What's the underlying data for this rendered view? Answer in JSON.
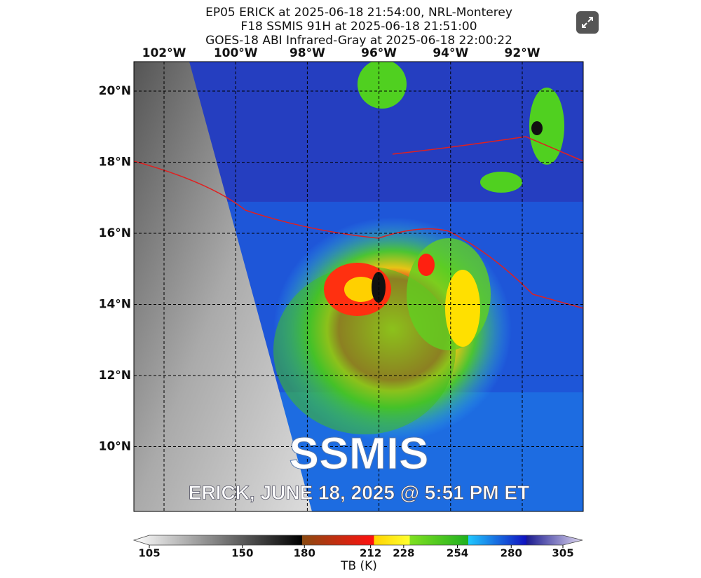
{
  "title_lines": [
    "EP05 ERICK at 2025-06-18 21:54:00, NRL-Monterey",
    "F18 SSMIS 91H at 2025-06-18 21:51:00",
    "GOES-18 ABI Infrared-Gray at 2025-06-18 22:00:22"
  ],
  "longitude_labels": [
    "102°W",
    "100°W",
    "98°W",
    "96°W",
    "94°W",
    "92°W"
  ],
  "latitude_labels": [
    "20°N",
    "18°N",
    "16°N",
    "14°N",
    "12°N",
    "10°N"
  ],
  "overlay": {
    "headline": "SSMIS",
    "caption": "ERICK, JUNE 18, 2025 @ 5:51 PM ET"
  },
  "colorbar": {
    "label": "TB (K)",
    "range": [
      105,
      305
    ],
    "ticks": [
      105,
      150,
      180,
      212,
      228,
      254,
      280,
      305
    ]
  }
}
